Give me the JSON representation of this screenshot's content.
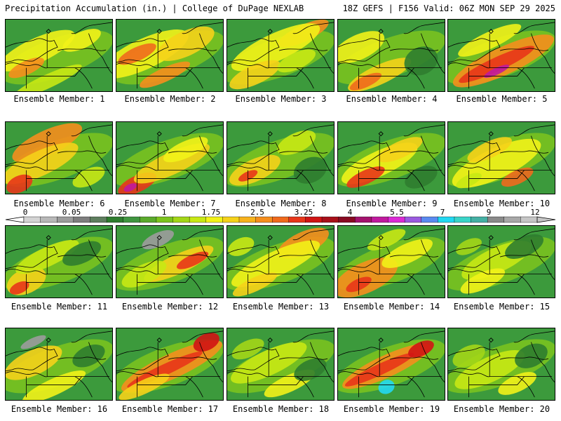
{
  "header": {
    "title": "Precipitation Accumulation (in.) | College of DuPage NEXLAB",
    "run_info": "18Z GEFS | F156 Valid: 06Z MON SEP 29 2025"
  },
  "colors": {
    "border": "#000000",
    "base_green": "#3c9a3c",
    "scale": [
      "#d4d4d4",
      "#b8b8b8",
      "#9c9c9c",
      "#7e7e7e",
      "#5e7e5e",
      "#2f7d2f",
      "#3f953f",
      "#5aaa2c",
      "#7cc41d",
      "#a3d617",
      "#c8e814",
      "#f2f218",
      "#f5d21a",
      "#f7b21c",
      "#f58e1d",
      "#f06a1d",
      "#e8361a",
      "#d01414",
      "#a8101a",
      "#880a22",
      "#a4126e",
      "#c01a9e",
      "#dc2ad6",
      "#9a5ae0",
      "#5a8af0",
      "#22d8f2",
      "#3ad4c8",
      "#44b0a4",
      "#8a8a8a",
      "#a8a8a8",
      "#c6c6c6"
    ]
  },
  "scale": {
    "units": "in.",
    "tick_labels": [
      "0",
      "0.05",
      "0.25",
      "1",
      "1.75",
      "2.5",
      "3.25",
      "4",
      "5.5",
      "7",
      "9",
      "12"
    ]
  },
  "panels": [
    {
      "label": "Ensemble Member: 1"
    },
    {
      "label": "Ensemble Member: 2"
    },
    {
      "label": "Ensemble Member: 3"
    },
    {
      "label": "Ensemble Member: 4"
    },
    {
      "label": "Ensemble Member: 5"
    },
    {
      "label": "Ensemble Member: 6"
    },
    {
      "label": "Ensemble Member: 7"
    },
    {
      "label": "Ensemble Member: 8"
    },
    {
      "label": "Ensemble Member: 9"
    },
    {
      "label": "Ensemble Member: 10"
    },
    {
      "label": "Ensemble Member: 11"
    },
    {
      "label": "Ensemble Member: 12"
    },
    {
      "label": "Ensemble Member: 13"
    },
    {
      "label": "Ensemble Member: 14"
    },
    {
      "label": "Ensemble Member: 15"
    },
    {
      "label": "Ensemble Member: 16"
    },
    {
      "label": "Ensemble Member: 17"
    },
    {
      "label": "Ensemble Member: 18"
    },
    {
      "label": "Ensemble Member: 19"
    },
    {
      "label": "Ensemble Member: 20"
    }
  ]
}
